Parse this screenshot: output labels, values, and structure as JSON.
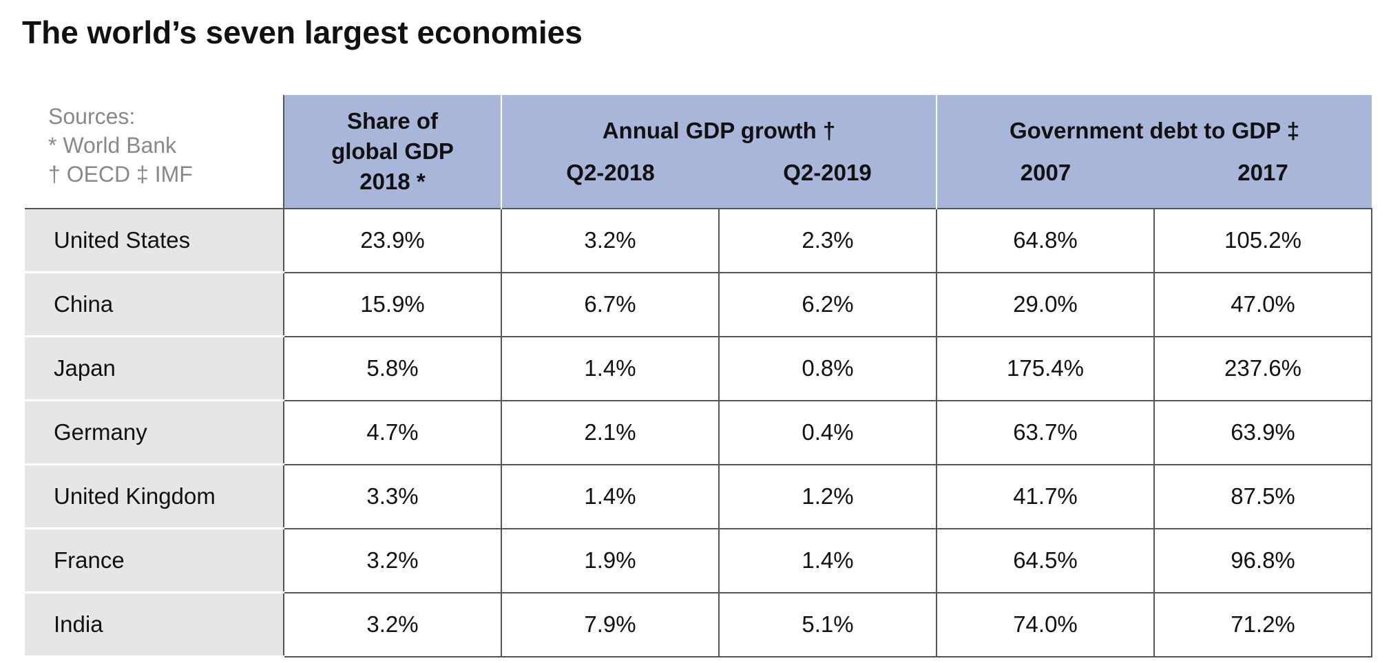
{
  "title": "The world’s seven largest economies",
  "sources": [
    "Sources:",
    "* World Bank",
    "† OECD  ‡ IMF"
  ],
  "header": {
    "share": "Share of global GDP 2018 *",
    "groups": [
      {
        "label": "Annual GDP growth †",
        "columns": [
          "Q2-2018",
          "Q2-2019"
        ]
      },
      {
        "label": "Government debt to GDP ‡",
        "columns": [
          "2007",
          "2017"
        ]
      }
    ]
  },
  "rows": [
    {
      "country": "United States",
      "values": [
        "23.9%",
        "3.2%",
        "2.3%",
        "64.8%",
        "105.2%"
      ]
    },
    {
      "country": "China",
      "values": [
        "15.9%",
        "6.7%",
        "6.2%",
        "29.0%",
        "47.0%"
      ]
    },
    {
      "country": "Japan",
      "values": [
        "5.8%",
        "1.4%",
        "0.8%",
        "175.4%",
        "237.6%"
      ]
    },
    {
      "country": "Germany",
      "values": [
        "4.7%",
        "2.1%",
        "0.4%",
        "63.7%",
        "63.9%"
      ]
    },
    {
      "country": "United Kingdom",
      "values": [
        "3.3%",
        "1.4%",
        "1.2%",
        "41.7%",
        "87.5%"
      ]
    },
    {
      "country": "France",
      "values": [
        "3.2%",
        "1.9%",
        "1.4%",
        "64.5%",
        "96.8%"
      ]
    },
    {
      "country": "India",
      "values": [
        "3.2%",
        "7.9%",
        "5.1%",
        "74.0%",
        "71.2%"
      ]
    }
  ]
}
